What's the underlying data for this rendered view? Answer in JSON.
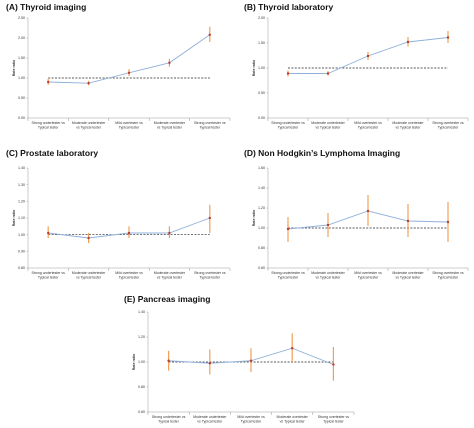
{
  "colors": {
    "line": "#8fb1d9",
    "point": "#c0392b",
    "errorbar": "#f0a05a",
    "reference": "#222222",
    "axis": "#999999"
  },
  "chart_data": [
    {
      "type": "line",
      "title": "(A)   Thyroid imaging",
      "ylabel": "Rate ratio",
      "ylim": [
        0,
        2.5
      ],
      "yticks": [
        "0.00",
        "0.50",
        "1.00",
        "1.50",
        "2.00",
        "2.50"
      ],
      "reference_line": 1.0,
      "categories": [
        [
          "Strong undertester vs",
          "Typical tester"
        ],
        [
          "Moderate undertester",
          "vs Typical tester"
        ],
        [
          "Mild overtester vs",
          "Typical tester"
        ],
        [
          "Moderate overtester",
          "vs Typical tester"
        ],
        [
          "Strong overtester vs",
          "Typical tester"
        ]
      ],
      "values": [
        0.9,
        0.87,
        1.13,
        1.38,
        2.08
      ],
      "lower": [
        0.83,
        0.82,
        1.05,
        1.28,
        1.9
      ],
      "upper": [
        0.98,
        0.93,
        1.22,
        1.48,
        2.28
      ]
    },
    {
      "type": "line",
      "title": "(B)   Thyroid laboratory",
      "ylabel": "Rate ratio",
      "ylim": [
        0,
        2.0
      ],
      "yticks": [
        "0.00",
        "0.50",
        "1.00",
        "1.50",
        "2.00"
      ],
      "reference_line": 1.0,
      "categories": [
        [
          "Strong undertester vs",
          "Typical tester"
        ],
        [
          "Moderate undertester",
          "vs Typical tester"
        ],
        [
          "Mild overtester vs",
          "Typical tester"
        ],
        [
          "Moderate overtester",
          "vs Typical tester"
        ],
        [
          "Strong overtester vs",
          "Typical tester"
        ]
      ],
      "values": [
        0.89,
        0.89,
        1.24,
        1.52,
        1.61
      ],
      "lower": [
        0.83,
        0.85,
        1.16,
        1.43,
        1.5
      ],
      "upper": [
        0.95,
        0.94,
        1.32,
        1.62,
        1.74
      ]
    },
    {
      "type": "line",
      "title": "(C)   Prostate laboratory",
      "ylabel": "Rate ratio",
      "ylim": [
        0.8,
        1.4
      ],
      "yticks": [
        "0.80",
        "0.90",
        "1.00",
        "1.10",
        "1.20",
        "1.30",
        "1.40"
      ],
      "reference_line": 1.0,
      "categories": [
        [
          "Strong undertester vs",
          "Typical tester"
        ],
        [
          "Moderate undertester",
          "vs Typical tester"
        ],
        [
          "Mild overtester vs",
          "Typical tester"
        ],
        [
          "Moderate overtester",
          "vs Typical tester"
        ],
        [
          "Strong overtester vs",
          "Typical tester"
        ]
      ],
      "values": [
        1.01,
        0.98,
        1.01,
        1.01,
        1.1
      ],
      "lower": [
        0.98,
        0.95,
        0.98,
        0.98,
        1.01
      ],
      "upper": [
        1.05,
        1.01,
        1.05,
        1.05,
        1.18
      ]
    },
    {
      "type": "line",
      "title": "(D)   Non Hodgkin’s Lymphoma Imaging",
      "ylabel": "Rate ratio",
      "ylim": [
        0.6,
        1.6
      ],
      "yticks": [
        "0.60",
        "0.80",
        "1.00",
        "1.20",
        "1.40",
        "1.60"
      ],
      "reference_line": 1.0,
      "categories": [
        [
          "Strong undertester vs",
          "Typical tester"
        ],
        [
          "Moderate undertester",
          "vs Typical tester"
        ],
        [
          "Mild overtester vs",
          "Typical tester"
        ],
        [
          "Moderate overtester",
          "vs Typical tester"
        ],
        [
          "Strong overtester vs",
          "Typical tester"
        ]
      ],
      "values": [
        0.99,
        1.03,
        1.17,
        1.07,
        1.06
      ],
      "lower": [
        0.86,
        0.91,
        1.02,
        0.91,
        0.86
      ],
      "upper": [
        1.11,
        1.15,
        1.33,
        1.24,
        1.26
      ]
    },
    {
      "type": "line",
      "title": "(E)   Pancreas imaging",
      "ylabel": "Rate ratio",
      "ylim": [
        0.6,
        1.4
      ],
      "yticks": [
        "0.60",
        "0.80",
        "1.00",
        "1.20",
        "1.40"
      ],
      "reference_line": 1.0,
      "categories": [
        [
          "Strong undertester vs",
          "Typical tester"
        ],
        [
          "Moderate undertester",
          "vs Typical tester"
        ],
        [
          "Mild overtester vs",
          "Typical tester"
        ],
        [
          "Moderate overtester",
          "vs Typical tester"
        ],
        [
          "Strong overtester vs",
          "Typical tester"
        ]
      ],
      "values": [
        1.01,
        0.99,
        1.01,
        1.11,
        0.98
      ],
      "lower": [
        0.93,
        0.9,
        0.92,
        1.0,
        0.85
      ],
      "upper": [
        1.09,
        1.1,
        1.11,
        1.23,
        1.12
      ]
    }
  ]
}
